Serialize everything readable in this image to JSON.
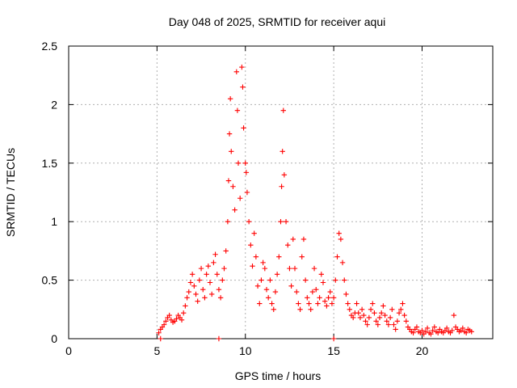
{
  "chart_data": {
    "type": "scatter",
    "title": "Day 048 of 2025, SRMTID for receiver aqui",
    "xlabel": "GPS time / hours",
    "ylabel": "SRMTID / TECUs",
    "xlim": [
      0,
      24
    ],
    "ylim": [
      0,
      2.5
    ],
    "x_ticks": [
      "0",
      "5",
      "10",
      "15",
      "20"
    ],
    "y_ticks": [
      "0",
      "0.5",
      "1",
      "1.5",
      "2",
      "2.5"
    ],
    "grid": true,
    "marker_color": "#ff0000",
    "series": [
      {
        "name": "SRMTID",
        "marker": "plus",
        "points": [
          [
            5.1,
            0.05
          ],
          [
            5.2,
            0.08
          ],
          [
            5.3,
            0.1
          ],
          [
            5.4,
            0.12
          ],
          [
            5.5,
            0.15
          ],
          [
            5.6,
            0.18
          ],
          [
            5.7,
            0.2
          ],
          [
            5.8,
            0.16
          ],
          [
            5.9,
            0.14
          ],
          [
            6.0,
            0.15
          ],
          [
            6.1,
            0.17
          ],
          [
            6.2,
            0.2
          ],
          [
            6.3,
            0.18
          ],
          [
            6.4,
            0.16
          ],
          [
            6.5,
            0.22
          ],
          [
            6.6,
            0.28
          ],
          [
            6.7,
            0.35
          ],
          [
            6.8,
            0.4
          ],
          [
            6.9,
            0.48
          ],
          [
            7.0,
            0.55
          ],
          [
            7.1,
            0.45
          ],
          [
            7.2,
            0.38
          ],
          [
            7.3,
            0.32
          ],
          [
            7.4,
            0.5
          ],
          [
            7.5,
            0.6
          ],
          [
            7.6,
            0.42
          ],
          [
            7.7,
            0.35
          ],
          [
            7.8,
            0.55
          ],
          [
            7.9,
            0.62
          ],
          [
            8.0,
            0.48
          ],
          [
            8.1,
            0.38
          ],
          [
            8.2,
            0.65
          ],
          [
            8.3,
            0.72
          ],
          [
            8.4,
            0.55
          ],
          [
            8.5,
            0.42
          ],
          [
            8.6,
            0.35
          ],
          [
            8.7,
            0.5
          ],
          [
            8.8,
            0.6
          ],
          [
            8.9,
            0.75
          ],
          [
            9.0,
            1.0
          ],
          [
            9.05,
            1.35
          ],
          [
            9.1,
            1.75
          ],
          [
            9.15,
            2.05
          ],
          [
            9.2,
            1.6
          ],
          [
            9.3,
            1.3
          ],
          [
            9.4,
            1.1
          ],
          [
            9.5,
            2.28
          ],
          [
            9.55,
            1.95
          ],
          [
            9.6,
            1.5
          ],
          [
            9.7,
            1.2
          ],
          [
            9.8,
            2.32
          ],
          [
            9.85,
            2.15
          ],
          [
            9.9,
            1.8
          ],
          [
            10.0,
            1.5
          ],
          [
            10.05,
            1.42
          ],
          [
            10.1,
            1.25
          ],
          [
            10.2,
            1.0
          ],
          [
            10.3,
            0.8
          ],
          [
            10.4,
            0.62
          ],
          [
            10.5,
            0.9
          ],
          [
            10.6,
            0.7
          ],
          [
            10.7,
            0.45
          ],
          [
            10.8,
            0.3
          ],
          [
            10.9,
            0.5
          ],
          [
            11.0,
            0.65
          ],
          [
            11.1,
            0.6
          ],
          [
            11.2,
            0.42
          ],
          [
            11.3,
            0.35
          ],
          [
            11.4,
            0.5
          ],
          [
            11.5,
            0.3
          ],
          [
            11.6,
            0.25
          ],
          [
            11.7,
            0.4
          ],
          [
            11.8,
            0.55
          ],
          [
            11.9,
            0.7
          ],
          [
            12.0,
            1.0
          ],
          [
            12.05,
            1.3
          ],
          [
            12.1,
            1.6
          ],
          [
            12.15,
            1.95
          ],
          [
            12.2,
            1.4
          ],
          [
            12.3,
            1.0
          ],
          [
            12.4,
            0.8
          ],
          [
            12.5,
            0.6
          ],
          [
            12.6,
            0.45
          ],
          [
            12.7,
            0.85
          ],
          [
            12.8,
            0.6
          ],
          [
            12.9,
            0.4
          ],
          [
            13.0,
            0.3
          ],
          [
            13.1,
            0.25
          ],
          [
            13.2,
            0.7
          ],
          [
            13.3,
            0.85
          ],
          [
            13.4,
            0.5
          ],
          [
            13.5,
            0.35
          ],
          [
            13.6,
            0.3
          ],
          [
            13.7,
            0.25
          ],
          [
            13.8,
            0.4
          ],
          [
            13.9,
            0.6
          ],
          [
            14.0,
            0.42
          ],
          [
            14.1,
            0.3
          ],
          [
            14.2,
            0.35
          ],
          [
            14.3,
            0.55
          ],
          [
            14.4,
            0.48
          ],
          [
            14.5,
            0.32
          ],
          [
            14.6,
            0.28
          ],
          [
            14.7,
            0.35
          ],
          [
            14.8,
            0.4
          ],
          [
            14.9,
            0.3
          ],
          [
            15.0,
            0.35
          ],
          [
            15.1,
            0.5
          ],
          [
            15.2,
            0.7
          ],
          [
            15.3,
            0.9
          ],
          [
            15.4,
            0.85
          ],
          [
            15.5,
            0.65
          ],
          [
            15.6,
            0.5
          ],
          [
            15.7,
            0.38
          ],
          [
            15.8,
            0.3
          ],
          [
            15.9,
            0.25
          ],
          [
            16.0,
            0.2
          ],
          [
            16.1,
            0.18
          ],
          [
            16.2,
            0.22
          ],
          [
            16.3,
            0.3
          ],
          [
            16.4,
            0.22
          ],
          [
            16.5,
            0.18
          ],
          [
            16.6,
            0.25
          ],
          [
            16.7,
            0.2
          ],
          [
            16.8,
            0.15
          ],
          [
            16.9,
            0.12
          ],
          [
            17.0,
            0.18
          ],
          [
            17.1,
            0.25
          ],
          [
            17.2,
            0.3
          ],
          [
            17.3,
            0.22
          ],
          [
            17.4,
            0.15
          ],
          [
            17.5,
            0.12
          ],
          [
            17.6,
            0.18
          ],
          [
            17.7,
            0.22
          ],
          [
            17.8,
            0.28
          ],
          [
            17.9,
            0.2
          ],
          [
            18.0,
            0.15
          ],
          [
            18.1,
            0.12
          ],
          [
            18.2,
            0.18
          ],
          [
            18.3,
            0.25
          ],
          [
            18.4,
            0.12
          ],
          [
            18.5,
            0.08
          ],
          [
            18.6,
            0.15
          ],
          [
            18.7,
            0.22
          ],
          [
            18.8,
            0.25
          ],
          [
            18.9,
            0.3
          ],
          [
            19.0,
            0.2
          ],
          [
            19.1,
            0.15
          ],
          [
            19.2,
            0.1
          ],
          [
            19.3,
            0.08
          ],
          [
            19.4,
            0.06
          ],
          [
            19.5,
            0.05
          ],
          [
            19.6,
            0.08
          ],
          [
            19.7,
            0.1
          ],
          [
            19.8,
            0.06
          ],
          [
            19.9,
            0.05
          ],
          [
            20.0,
            0.07
          ],
          [
            20.1,
            0.04
          ],
          [
            20.2,
            0.06
          ],
          [
            20.3,
            0.09
          ],
          [
            20.4,
            0.05
          ],
          [
            20.5,
            0.04
          ],
          [
            20.6,
            0.07
          ],
          [
            20.7,
            0.1
          ],
          [
            20.8,
            0.06
          ],
          [
            20.9,
            0.05
          ],
          [
            21.0,
            0.08
          ],
          [
            21.1,
            0.06
          ],
          [
            21.2,
            0.05
          ],
          [
            21.3,
            0.07
          ],
          [
            21.4,
            0.09
          ],
          [
            21.5,
            0.06
          ],
          [
            21.6,
            0.05
          ],
          [
            21.7,
            0.07
          ],
          [
            21.8,
            0.2
          ],
          [
            21.9,
            0.1
          ],
          [
            22.0,
            0.08
          ],
          [
            22.1,
            0.06
          ],
          [
            22.2,
            0.07
          ],
          [
            22.3,
            0.09
          ],
          [
            22.4,
            0.06
          ],
          [
            22.5,
            0.05
          ],
          [
            22.6,
            0.08
          ],
          [
            22.7,
            0.07
          ],
          [
            22.8,
            0.06
          ],
          [
            5.2,
            0.0
          ],
          [
            8.5,
            0.0
          ],
          [
            15.0,
            0.0
          ]
        ]
      }
    ]
  }
}
